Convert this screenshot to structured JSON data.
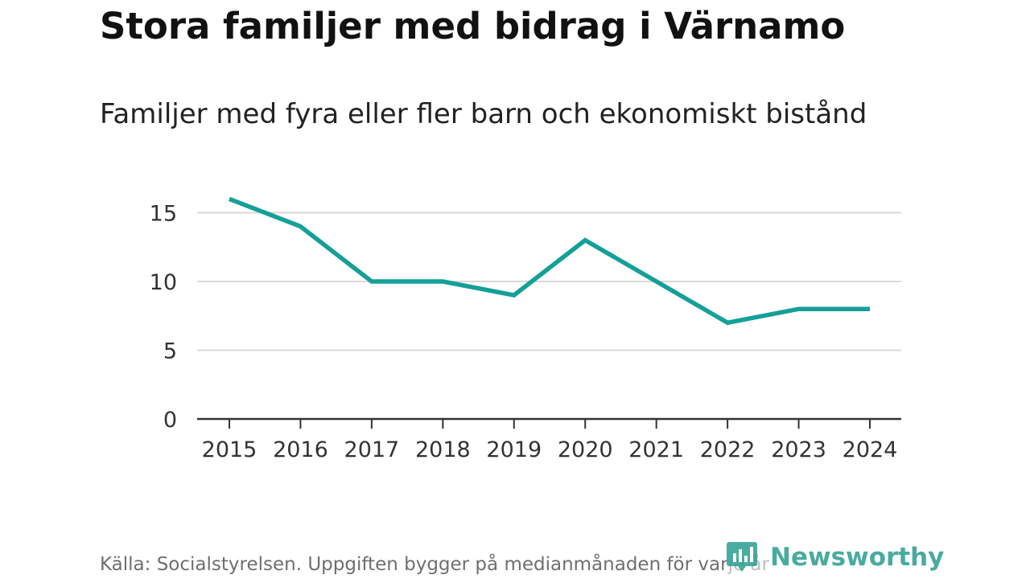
{
  "header": {
    "title": "Stora familjer med bidrag i Värnamo",
    "subtitle": "Familjer med fyra eller fler barn och ekonomiskt bistånd"
  },
  "footer": {
    "source": "Källa: Socialstyrelsen. Uppgiften bygger på medianmånaden för varje år",
    "brand": "Newsworthy"
  },
  "colors": {
    "line": "#14a098",
    "grid": "#d9d9d9",
    "axis": "#333333",
    "brand": "#2a9d8f"
  },
  "chart_data": {
    "type": "line",
    "title": "Stora familjer med bidrag i Värnamo",
    "subtitle": "Familjer med fyra eller fler barn och ekonomiskt bistånd",
    "xlabel": "",
    "ylabel": "",
    "categories": [
      "2015",
      "2016",
      "2017",
      "2018",
      "2019",
      "2020",
      "2021",
      "2022",
      "2023",
      "2024"
    ],
    "series": [
      {
        "name": "Familjer med fyra eller fler barn och ekonomiskt bistånd",
        "values": [
          16,
          14,
          10,
          10,
          9,
          13,
          10,
          7,
          8,
          8
        ]
      }
    ],
    "ylim": [
      0,
      17
    ],
    "yticks": [
      0,
      5,
      10,
      15
    ],
    "grid": true,
    "legend": "none"
  }
}
